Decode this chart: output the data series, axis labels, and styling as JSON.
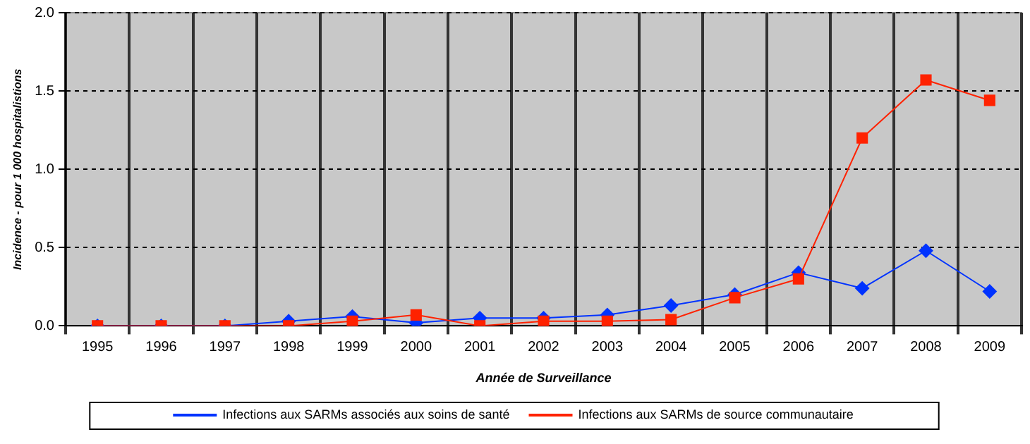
{
  "chart_data": {
    "type": "line",
    "xlabel": "Année de Surveillance",
    "ylabel": "Incidence - pour 1 000 hospitalistions",
    "categories": [
      "1995",
      "1996",
      "1997",
      "1998",
      "1999",
      "2000",
      "2001",
      "2002",
      "2003",
      "2004",
      "2005",
      "2006",
      "2007",
      "2008",
      "2009"
    ],
    "series": [
      {
        "name": "Infections aux SARMs associés aux soins de santé",
        "color": "#0033ff",
        "marker": "diamond",
        "values": [
          0,
          0,
          0,
          0.03,
          0.06,
          0.02,
          0.05,
          0.05,
          0.07,
          0.13,
          0.2,
          0.34,
          0.24,
          0.48,
          0.22
        ]
      },
      {
        "name": "Infections aux SARMs de source communautaire",
        "color": "#ff2200",
        "marker": "square",
        "values": [
          0,
          0,
          0,
          0,
          0.03,
          0.07,
          0,
          0.03,
          0.03,
          0.04,
          0.18,
          0.3,
          1.2,
          1.57,
          1.44
        ]
      }
    ],
    "ylim": [
      0,
      2
    ],
    "yticks": [
      {
        "value": 0,
        "label": "0.0"
      },
      {
        "value": 0.5,
        "label": "0.5"
      },
      {
        "value": 1,
        "label": "1.0"
      },
      {
        "value": 1.5,
        "label": "1.5"
      },
      {
        "value": 2,
        "label": "2.0"
      }
    ],
    "grid": true,
    "legend": "bottom"
  }
}
